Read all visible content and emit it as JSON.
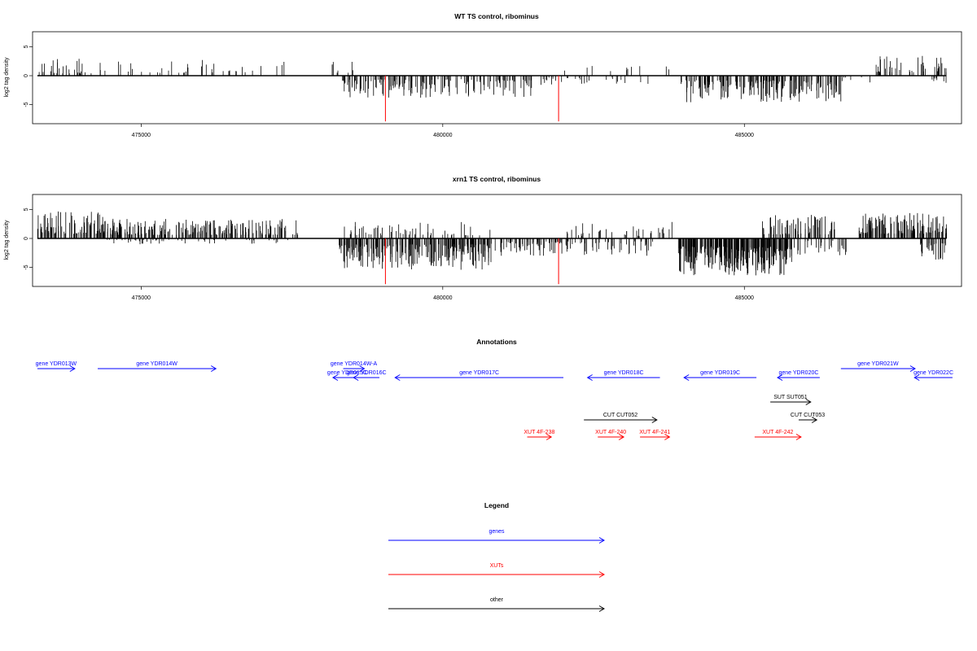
{
  "colors": {
    "genes": "#0000ff",
    "xuts": "#ff0000",
    "other": "#000000",
    "signal": "#000000",
    "highlight": "#ff0000"
  },
  "chart_data": [
    {
      "type": "bar",
      "title": "WT TS control, ribominus",
      "xlabel": "",
      "ylabel": "log2 tag density",
      "xlim": [
        473200,
        488600
      ],
      "ylim": [
        -8.3,
        7.6
      ],
      "xticks": [
        475000,
        480000,
        485000
      ],
      "xtick_labels": [
        "475000",
        "480000",
        "485000"
      ],
      "yticks": [
        -5,
        0,
        5
      ],
      "ytick_labels": [
        "-5",
        "0",
        "5"
      ],
      "series": [
        {
          "color": "#000000",
          "segments": [
            {
              "x0": 473280,
              "x1": 474200,
              "base": 0.4,
              "amp": 2.8,
              "sign": 1,
              "seed": 11,
              "density": 0.03
            },
            {
              "x0": 474200,
              "x1": 477500,
              "base": 0.5,
              "amp": 2.4,
              "sign": 1,
              "seed": 21,
              "density": 0.012
            },
            {
              "x0": 478150,
              "x1": 478550,
              "base": 0.5,
              "amp": 2.0,
              "sign": 1,
              "seed": 31,
              "density": 0.02
            },
            {
              "x0": 478300,
              "x1": 481500,
              "base": 0.6,
              "amp": 3.2,
              "sign": -1,
              "seed": 41,
              "density": 0.05
            },
            {
              "x0": 481500,
              "x1": 482000,
              "base": 0.3,
              "amp": 1.5,
              "sign": -1,
              "seed": 51,
              "density": 0.02
            },
            {
              "x0": 482000,
              "x1": 483500,
              "base": 0.3,
              "amp": 1.2,
              "sign": -1,
              "seed": 61,
              "density": 0.012
            },
            {
              "x0": 482000,
              "x1": 483800,
              "base": 0.5,
              "amp": 2.0,
              "sign": 1,
              "seed": 71,
              "density": 0.006
            },
            {
              "x0": 483950,
              "x1": 486600,
              "base": 0.8,
              "amp": 3.8,
              "sign": -1,
              "seed": 81,
              "density": 0.07
            },
            {
              "x0": 486600,
              "x1": 487200,
              "base": 0.3,
              "amp": 1.2,
              "sign": -1,
              "seed": 91,
              "density": 0.01
            },
            {
              "x0": 487100,
              "x1": 488350,
              "base": 0.6,
              "amp": 3.0,
              "sign": 1,
              "seed": 101,
              "density": 0.035
            },
            {
              "x0": 488100,
              "x1": 488350,
              "base": 0.3,
              "amp": 1.0,
              "sign": -1,
              "seed": 111,
              "density": 0.03
            }
          ]
        }
      ],
      "highlights": [
        {
          "x": 479050,
          "y": -7.9
        },
        {
          "x": 481920,
          "y": -7.9
        }
      ]
    },
    {
      "type": "bar",
      "title": "xrn1 TS control, ribominus",
      "xlabel": "",
      "ylabel": "log2 tag density",
      "xlim": [
        473200,
        488600
      ],
      "ylim": [
        -8.3,
        7.6
      ],
      "xticks": [
        475000,
        480000,
        485000
      ],
      "xtick_labels": [
        "475000",
        "480000",
        "485000"
      ],
      "yticks": [
        -5,
        0,
        5
      ],
      "ytick_labels": [
        "-5",
        "0",
        "5"
      ],
      "series": [
        {
          "color": "#000000",
          "segments": [
            {
              "x0": 473280,
              "x1": 474400,
              "base": 0.8,
              "amp": 4.0,
              "sign": 1,
              "seed": 13,
              "density": 0.08
            },
            {
              "x0": 474400,
              "x1": 477600,
              "base": 0.6,
              "amp": 2.8,
              "sign": 1,
              "seed": 23,
              "density": 0.07
            },
            {
              "x0": 474400,
              "x1": 477600,
              "base": 0.2,
              "amp": 0.8,
              "sign": -1,
              "seed": 33,
              "density": 0.015
            },
            {
              "x0": 478250,
              "x1": 480800,
              "base": 1.0,
              "amp": 4.5,
              "sign": -1,
              "seed": 43,
              "density": 0.09
            },
            {
              "x0": 478350,
              "x1": 480800,
              "base": 0.5,
              "amp": 2.5,
              "sign": 1,
              "seed": 53,
              "density": 0.025
            },
            {
              "x0": 480800,
              "x1": 483500,
              "base": 0.5,
              "amp": 2.5,
              "sign": -1,
              "seed": 63,
              "density": 0.04
            },
            {
              "x0": 482000,
              "x1": 483800,
              "base": 0.4,
              "amp": 2.5,
              "sign": 1,
              "seed": 73,
              "density": 0.02
            },
            {
              "x0": 483900,
              "x1": 485800,
              "base": 1.4,
              "amp": 5.0,
              "sign": -1,
              "seed": 83,
              "density": 0.15
            },
            {
              "x0": 485300,
              "x1": 486500,
              "base": 0.6,
              "amp": 3.5,
              "sign": 1,
              "seed": 93,
              "density": 0.06
            },
            {
              "x0": 485800,
              "x1": 486700,
              "base": 0.4,
              "amp": 2.5,
              "sign": -1,
              "seed": 103,
              "density": 0.03
            },
            {
              "x0": 486900,
              "x1": 488350,
              "base": 0.8,
              "amp": 3.6,
              "sign": 1,
              "seed": 113,
              "density": 0.09
            },
            {
              "x0": 487900,
              "x1": 488350,
              "base": 0.8,
              "amp": 3.0,
              "sign": -1,
              "seed": 123,
              "density": 0.06
            }
          ]
        }
      ],
      "highlights": [
        {
          "x": 479050,
          "y": -7.9
        },
        {
          "x": 481920,
          "y": -7.9
        }
      ]
    }
  ],
  "annotations": {
    "title": "Annotations",
    "xlim": [
      473200,
      488600
    ],
    "items": [
      {
        "label": "gene YDR013W",
        "start": 473280,
        "end": 473900,
        "strand": "+",
        "row": 0,
        "kind": "genes"
      },
      {
        "label": "gene YDR014W",
        "start": 474280,
        "end": 476240,
        "strand": "+",
        "row": 0,
        "kind": "genes"
      },
      {
        "label": "gene YDR014W-A",
        "start": 478350,
        "end": 478700,
        "strand": "+",
        "row": 0,
        "kind": "genes"
      },
      {
        "label": "gene YDR015C",
        "start": 478180,
        "end": 478650,
        "strand": "-",
        "row": 1,
        "kind": "genes"
      },
      {
        "label": "gene YDR016C",
        "start": 478520,
        "end": 478950,
        "strand": "-",
        "row": 1,
        "kind": "genes"
      },
      {
        "label": "gene YDR017C",
        "start": 479210,
        "end": 482000,
        "strand": "-",
        "row": 1,
        "kind": "genes"
      },
      {
        "label": "gene YDR018C",
        "start": 482400,
        "end": 483600,
        "strand": "-",
        "row": 1,
        "kind": "genes"
      },
      {
        "label": "gene YDR019C",
        "start": 484000,
        "end": 485200,
        "strand": "-",
        "row": 1,
        "kind": "genes"
      },
      {
        "label": "gene YDR020C",
        "start": 485550,
        "end": 486250,
        "strand": "-",
        "row": 1,
        "kind": "genes"
      },
      {
        "label": "gene YDR021W",
        "start": 486600,
        "end": 487830,
        "strand": "+",
        "row": 0,
        "kind": "genes"
      },
      {
        "label": "gene YDR022C",
        "start": 487820,
        "end": 488450,
        "strand": "-",
        "row": 1,
        "kind": "genes"
      },
      {
        "label": "SUT SUT051",
        "start": 485430,
        "end": 486100,
        "strand": "+",
        "row": 3,
        "kind": "other"
      },
      {
        "label": "CUT CUT052",
        "start": 482340,
        "end": 483550,
        "strand": "+",
        "row": 4,
        "kind": "other"
      },
      {
        "label": "CUT CUT053",
        "start": 485900,
        "end": 486200,
        "strand": "+",
        "row": 4,
        "kind": "other"
      },
      {
        "label": "XUT 4F-238",
        "start": 481400,
        "end": 481800,
        "strand": "+",
        "row": 5,
        "kind": "xuts"
      },
      {
        "label": "XUT 4F-240",
        "start": 482570,
        "end": 483000,
        "strand": "+",
        "row": 5,
        "kind": "xuts"
      },
      {
        "label": "XUT 4F-241",
        "start": 483270,
        "end": 483760,
        "strand": "+",
        "row": 5,
        "kind": "xuts"
      },
      {
        "label": "XUT 4F-242",
        "start": 485170,
        "end": 485940,
        "strand": "+",
        "row": 5,
        "kind": "xuts"
      }
    ]
  },
  "legend": {
    "title": "Legend",
    "items": [
      {
        "label": "genes",
        "kind": "genes"
      },
      {
        "label": "XUTs",
        "kind": "xuts"
      },
      {
        "label": "other",
        "kind": "other"
      }
    ]
  }
}
